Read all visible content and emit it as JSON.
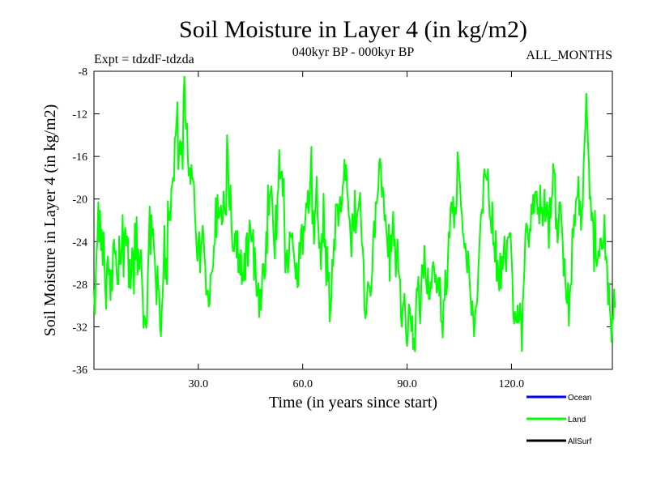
{
  "chart_data": {
    "type": "line",
    "title": "Soil Moisture in Layer 4 (in kg/m2)",
    "subtitle_left": "Expt = tdzdF-tdzda",
    "subtitle_center": "040kyr BP - 000kyr BP",
    "subtitle_right": "ALL_MONTHS",
    "xlabel": "Time (in years since start)",
    "ylabel": "Soil Moisture in Layer 4 (in kg/m2)",
    "xlim": [
      0,
      149
    ],
    "ylim": [
      -36,
      -8
    ],
    "xticks": [
      30,
      60,
      90,
      120
    ],
    "xtick_labels": [
      "30.0",
      "60.0",
      "90.0",
      "120.0"
    ],
    "yticks": [
      -36,
      -32,
      -28,
      -24,
      -20,
      -16,
      -12,
      -8
    ],
    "ytick_labels": [
      "-36",
      "-32",
      "-28",
      "-24",
      "-20",
      "-16",
      "-12",
      "-8"
    ],
    "x_start": 0,
    "x_step": 0.25,
    "legend": [
      {
        "name": "Ocean",
        "color": "#0000ff"
      },
      {
        "name": "Land",
        "color": "#00ff00"
      },
      {
        "name": "AllSurf",
        "color": "#000000"
      }
    ],
    "series": [
      {
        "name": "Land",
        "color": "#00ff00",
        "values": [
          -28.5,
          -30.8,
          -27.4,
          -25.1,
          -23.9,
          -20.3,
          -24.0,
          -21.1,
          -24.8,
          -22.9,
          -26.2,
          -23.1,
          -25.9,
          -28.4,
          -30.3,
          -26.1,
          -25.4,
          -27.1,
          -26.6,
          -29.5,
          -26.7,
          -28.6,
          -24.4,
          -23.8,
          -25.1,
          -24.9,
          -26.7,
          -28.0,
          -28.0,
          -23.5,
          -26.1,
          -26.1,
          -24.3,
          -21.5,
          -27.3,
          -23.4,
          -22.7,
          -24.4,
          -23.5,
          -23.7,
          -28.3,
          -25.7,
          -28.4,
          -27.2,
          -24.6,
          -25.1,
          -28.9,
          -22.3,
          -25.7,
          -21.7,
          -27.1,
          -24.7,
          -26.6,
          -25.6,
          -24.8,
          -27.3,
          -29.0,
          -32.1,
          -31.0,
          -31.3,
          -32.1,
          -31.5,
          -26.9,
          -24.5,
          -20.7,
          -25.2,
          -21.5,
          -23.4,
          -22.8,
          -24.6,
          -25.8,
          -27.7,
          -29.9,
          -26.3,
          -28.4,
          -28.6,
          -32.0,
          -32.9,
          -30.4,
          -29.0,
          -26.5,
          -22.5,
          -27.5,
          -25.6,
          -28.0,
          -20.2,
          -22.0,
          -21.2,
          -22.0,
          -19.1,
          -18.6,
          -18.0,
          -18.3,
          -14.3,
          -14.0,
          -12.6,
          -10.9,
          -17.2,
          -15.6,
          -14.5,
          -15.8,
          -14.7,
          -17.2,
          -10.3,
          -8.5,
          -12.5,
          -13.4,
          -12.9,
          -16.3,
          -17.8,
          -17.1,
          -18.6,
          -16.8,
          -18.0,
          -18.2,
          -18.6,
          -21.2,
          -22.9,
          -24.7,
          -25.8,
          -24.0,
          -23.1,
          -26.9,
          -24.5,
          -24.0,
          -22.5,
          -23.5,
          -25.3,
          -26.3,
          -29.0,
          -28.6,
          -28.6,
          -30.1,
          -29.8,
          -27.1,
          -27.0,
          -26.8,
          -26.3,
          -24.4,
          -24.2,
          -19.9,
          -23.6,
          -19.6,
          -21.8,
          -21.7,
          -20.9,
          -20.6,
          -22.4,
          -22.1,
          -19.3,
          -20.9,
          -21.4,
          -21.5,
          -14.0,
          -15.8,
          -19.8,
          -21.0,
          -18.7,
          -22.2,
          -24.3,
          -24.9,
          -24.9,
          -23.3,
          -23.0,
          -25.5,
          -23.0,
          -26.9,
          -25.2,
          -27.1,
          -24.8,
          -28.0,
          -27.0,
          -27.7,
          -25.1,
          -27.6,
          -23.7,
          -23.2,
          -26.3,
          -24.0,
          -22.0,
          -22.8,
          -24.0,
          -23.9,
          -22.9,
          -27.6,
          -24.6,
          -26.9,
          -29.1,
          -28.9,
          -27.9,
          -31.1,
          -28.5,
          -30.4,
          -28.4,
          -26.1,
          -26.1,
          -27.5,
          -26.9,
          -23.1,
          -25.1,
          -18.7,
          -21.5,
          -19.8,
          -19.3,
          -18.8,
          -20.2,
          -22.5,
          -24.2,
          -25.6,
          -20.6,
          -23.8,
          -19.7,
          -19.0,
          -15.4,
          -18.1,
          -17.6,
          -17.4,
          -19.7,
          -18.1,
          -22.4,
          -26.9,
          -25.5,
          -24.8,
          -26.9,
          -25.8,
          -23.1,
          -23.4,
          -23.6,
          -23.2,
          -24.6,
          -25.3,
          -26.3,
          -27.5,
          -26.0,
          -28.3,
          -28.1,
          -24.1,
          -25.6,
          -23.1,
          -22.4,
          -25.2,
          -22.6,
          -23.0,
          -22.0,
          -20.4,
          -20.8,
          -19.2,
          -21.3,
          -19.8,
          -17.8,
          -15.1,
          -22.3,
          -21.1,
          -24.2,
          -21.5,
          -20.3,
          -17.9,
          -21.4,
          -22.7,
          -24.6,
          -24.1,
          -26.6,
          -23.3,
          -24.1,
          -19.5,
          -24.5,
          -23.8,
          -28.1,
          -24.5,
          -27.7,
          -26.9,
          -31.5,
          -30.3,
          -29.2,
          -25.7,
          -26.3,
          -23.8,
          -24.8,
          -20.5,
          -20.5,
          -20.5,
          -22.5,
          -20.9,
          -19.8,
          -21.2,
          -20.4,
          -18.8,
          -18.4,
          -16.3,
          -18.2,
          -16.8,
          -19.1,
          -20.0,
          -21.6,
          -21.9,
          -23.6,
          -25.4,
          -21.4,
          -21.9,
          -23.0,
          -19.2,
          -23.2,
          -22.0,
          -21.2,
          -20.9,
          -20.2,
          -19.4,
          -21.9,
          -24.2,
          -24.6,
          -26.0,
          -30.3,
          -31.2,
          -30.7,
          -29.1,
          -27.8,
          -28.1,
          -28.3,
          -29.1,
          -28.1,
          -26.8,
          -23.6,
          -22.1,
          -23.6,
          -20.3,
          -20.4,
          -19.8,
          -18.9,
          -16.5,
          -16.2,
          -17.3,
          -19.8,
          -18.9,
          -19.5,
          -22.0,
          -21.5,
          -22.9,
          -23.7,
          -25.4,
          -22.4,
          -27.7,
          -23.4,
          -24.9,
          -23.0,
          -21.2,
          -24.4,
          -23.8,
          -27.3,
          -25.2,
          -23.8,
          -26.7,
          -27.3,
          -27.6,
          -31.2,
          -32.0,
          -30.1,
          -29.8,
          -28.9,
          -31.0,
          -33.0,
          -33.8,
          -32.5,
          -29.9,
          -30.2,
          -31.3,
          -32.4,
          -31.0,
          -34.1,
          -33.1,
          -34.3,
          -30.9,
          -28.4,
          -28.6,
          -27.3,
          -30.0,
          -31.7,
          -29.1,
          -26.2,
          -26.2,
          -27.4,
          -24.4,
          -26.8,
          -28.0,
          -28.9,
          -26.5,
          -29.4,
          -29.4,
          -27.8,
          -28.4,
          -26.5,
          -25.9,
          -26.4,
          -27.8,
          -27.1,
          -28.8,
          -28.3,
          -27.4,
          -29.1,
          -27.4,
          -31.5,
          -31.5,
          -33.0,
          -29.5,
          -29.5,
          -26.7,
          -29.0,
          -28.3,
          -25.5,
          -23.1,
          -23.6,
          -20.8,
          -20.3,
          -21.3,
          -19.8,
          -22.7,
          -20.8,
          -21.4,
          -20.4,
          -15.6,
          -16.6,
          -17.7,
          -18.9,
          -20.7,
          -21.4,
          -23.1,
          -23.6,
          -24.6,
          -24.2,
          -25.4,
          -26.9,
          -24.9,
          -26.3,
          -27.8,
          -29.3,
          -30.9,
          -29.6,
          -31.0,
          -32.9,
          -31.1,
          -30.2,
          -30.0,
          -29.0,
          -26.5,
          -24.7,
          -22.9,
          -21.5,
          -21.0,
          -21.3,
          -17.9,
          -17.2,
          -17.9,
          -18.0,
          -18.2,
          -17.2,
          -19.9,
          -21.7,
          -21.9,
          -23.2,
          -20.3,
          -24.3,
          -24.1,
          -25.9,
          -23.0,
          -27.7,
          -25.8,
          -27.6,
          -28.6,
          -25.1,
          -28.4,
          -25.4,
          -26.6,
          -24.8,
          -23.5,
          -25.9,
          -26.8,
          -23.9,
          -23.6,
          -23.6,
          -23.2,
          -23.2,
          -25.3,
          -27.1,
          -30.8,
          -31.7,
          -30.6,
          -31.4,
          -31.6,
          -30.0,
          -31.6,
          -31.4,
          -29.8,
          -31.0,
          -34.3,
          -29.8,
          -28.2,
          -26.3,
          -23.2,
          -22.3,
          -22.5,
          -23.6,
          -24.5,
          -22.8,
          -23.0,
          -20.5,
          -21.4,
          -19.6,
          -21.3,
          -19.4,
          -19.3,
          -19.3,
          -21.4,
          -20.8,
          -22.3,
          -18.7,
          -21.3,
          -20.8,
          -22.5,
          -21.3,
          -19.1,
          -22.1,
          -21.3,
          -20.3,
          -21.6,
          -24.6,
          -19.9,
          -21.8,
          -20.0,
          -19.6,
          -16.7,
          -17.5,
          -17.6,
          -22.8,
          -21.8,
          -24.1,
          -23.2,
          -20.3,
          -20.3,
          -21.3,
          -22.6,
          -24.2,
          -27.2,
          -25.6,
          -27.8,
          -29.4,
          -29.8,
          -27.9,
          -31.9,
          -29.0,
          -28.0,
          -28.0,
          -22.8,
          -23.6,
          -21.5,
          -22.5,
          -20.2,
          -19.9,
          -19.7,
          -17.9,
          -21.5,
          -20.2,
          -22.9,
          -21.1,
          -20.6,
          -16.6,
          -14.8,
          -13.1,
          -10.1,
          -12.5,
          -14.7,
          -16.6,
          -20.0,
          -19.8,
          -22.0,
          -21.3,
          -22.4,
          -26.8,
          -21.1,
          -25.5,
          -26.3,
          -25.7,
          -24.9,
          -25.4,
          -23.7,
          -23.7,
          -24.7,
          -24.6,
          -23.8,
          -21.5,
          -25.7,
          -25.4,
          -26.3,
          -29.9,
          -27.9,
          -30.2,
          -31.2,
          -33.4,
          -31.1,
          -31.3,
          -28.5,
          -30.2
        ]
      }
    ]
  }
}
